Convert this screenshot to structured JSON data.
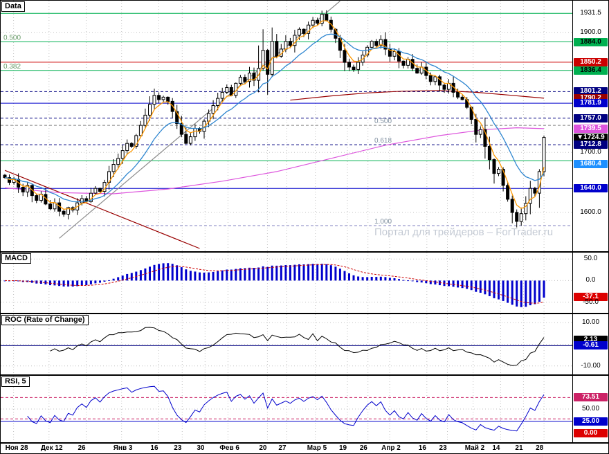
{
  "panels": {
    "main": {
      "label": "Data"
    },
    "macd": {
      "label": "MACD"
    },
    "roc": {
      "label": "ROC (Rate of Change)"
    },
    "rsi": {
      "label": "RSI, 5"
    }
  },
  "watermark": "Портал для трейдеров – ForTrader.ru",
  "chart_data": {
    "type": "candlestick",
    "x_ticks": [
      {
        "label": "Ноя 28",
        "f": 0.008
      },
      {
        "label": "Дек 12",
        "f": 0.07
      },
      {
        "label": "26",
        "f": 0.135
      },
      {
        "label": "Янв 3",
        "f": 0.197
      },
      {
        "label": "16",
        "f": 0.262
      },
      {
        "label": "23",
        "f": 0.303
      },
      {
        "label": "30",
        "f": 0.343
      },
      {
        "label": "Фев 6",
        "f": 0.383
      },
      {
        "label": "20",
        "f": 0.452
      },
      {
        "label": "27",
        "f": 0.486
      },
      {
        "label": "Мар 5",
        "f": 0.536
      },
      {
        "label": "19",
        "f": 0.592
      },
      {
        "label": "26",
        "f": 0.628
      },
      {
        "label": "Апр 2",
        "f": 0.666
      },
      {
        "label": "16",
        "f": 0.731
      },
      {
        "label": "23",
        "f": 0.767
      },
      {
        "label": "Май 2",
        "f": 0.812
      },
      {
        "label": "14",
        "f": 0.86
      },
      {
        "label": "21",
        "f": 0.9
      },
      {
        "label": "28",
        "f": 0.936
      }
    ],
    "price": {
      "ylim": [
        1540,
        1948
      ],
      "grid_levels": [
        1900,
        1700,
        1600
      ],
      "current_price": 1724.9,
      "candles": {
        "first_open": 1662,
        "closes": [
          1658,
          1650,
          1655,
          1642,
          1634,
          1645,
          1628,
          1620,
          1630,
          1614,
          1606,
          1616,
          1602,
          1597,
          1608,
          1604,
          1616,
          1623,
          1618,
          1632,
          1640,
          1635,
          1650,
          1668,
          1680,
          1690,
          1703,
          1715,
          1710,
          1728,
          1745,
          1762,
          1780,
          1795,
          1788,
          1792,
          1785,
          1768,
          1748,
          1730,
          1715,
          1726,
          1740,
          1735,
          1752,
          1765,
          1778,
          1790,
          1800,
          1808,
          1795,
          1815,
          1825,
          1818,
          1832,
          1820,
          1840,
          1870,
          1830,
          1885,
          1860,
          1872,
          1885,
          1878,
          1895,
          1905,
          1898,
          1912,
          1920,
          1915,
          1930,
          1920,
          1905,
          1890,
          1870,
          1850,
          1842,
          1838,
          1850,
          1862,
          1875,
          1885,
          1878,
          1888,
          1872,
          1860,
          1868,
          1852,
          1845,
          1855,
          1840,
          1832,
          1842,
          1828,
          1818,
          1826,
          1812,
          1805,
          1815,
          1800,
          1792,
          1788,
          1775,
          1755,
          1730,
          1738,
          1710,
          1688,
          1665,
          1672,
          1645,
          1622,
          1600,
          1585,
          1598,
          1615,
          1640,
          1632,
          1668,
          1724.9
        ],
        "wick_overrides": {
          "56": [
            1878,
            1800
          ],
          "57": [
            1905,
            1836
          ],
          "58": [
            1872,
            1796
          ],
          "59": [
            1908,
            1826
          ],
          "70": [
            1936,
            1910
          ],
          "108": [
            1690,
            1648
          ],
          "112": [
            1628,
            1582
          ],
          "113": [
            1605,
            1575
          ],
          "119": [
            1728,
            1660
          ]
        }
      },
      "moving_averages": [
        {
          "name": "ma-fast-orange",
          "period": 4,
          "color": "#FF9900"
        },
        {
          "name": "ma-slow-blue",
          "period": 13,
          "color": "#2E86D0"
        }
      ],
      "overlay_lines": [
        {
          "name": "trendline-down-maroon",
          "color": "#990000",
          "points": [
            [
              0,
              1670
            ],
            [
              43,
              1540
            ]
          ]
        },
        {
          "name": "trendline-up-gray",
          "color": "#8C8C8C",
          "points": [
            [
              12,
              1557
            ],
            [
              74,
              1952
            ]
          ]
        },
        {
          "name": "ma-long-maroon",
          "color": "#990000",
          "points": [
            [
              63,
              1787
            ],
            [
              72,
              1794
            ],
            [
              80,
              1799
            ],
            [
              88,
              1802
            ],
            [
              96,
              1803
            ],
            [
              104,
              1800
            ],
            [
              112,
              1795
            ],
            [
              119,
              1790.2
            ]
          ]
        },
        {
          "name": "ma-very-slow-magenta",
          "color": "#DD55DD",
          "points": [
            [
              0,
              1641
            ],
            [
              12,
              1633
            ],
            [
              24,
              1631
            ],
            [
              36,
              1639
            ],
            [
              48,
              1652
            ],
            [
              60,
              1668
            ],
            [
              72,
              1690
            ],
            [
              84,
              1712
            ],
            [
              96,
              1728
            ],
            [
              106,
              1738
            ],
            [
              113,
              1741
            ],
            [
              119,
              1739.5
            ]
          ]
        }
      ],
      "hlines": [
        {
          "value": 1931.5,
          "color": "#00B050",
          "dash": false,
          "fib": "0.618",
          "fibx": "left"
        },
        {
          "value": 1884.0,
          "color": "#00B050",
          "dash": false,
          "fib": "0.500",
          "fibx": "left"
        },
        {
          "value": 1850.2,
          "color": "#CC0000",
          "dash": false
        },
        {
          "value": 1836.4,
          "color": "#00B050",
          "dash": false,
          "fib": "0.382",
          "fibx": "left"
        },
        {
          "value": 1801.2,
          "color": "#000080",
          "dash": true
        },
        {
          "value": 1781.9,
          "color": "#0000CC",
          "dash": false
        },
        {
          "value": 1757.0,
          "color": "#000080",
          "dash": true
        },
        {
          "value": 1745.0,
          "color": "#808080",
          "dash": true,
          "fib": "0.500",
          "fibx": "mid"
        },
        {
          "value": 1712.8,
          "color": "#000080",
          "dash": true,
          "fib": "0.618",
          "fibx": "mid"
        },
        {
          "value": 1686.0,
          "color": "#00B050",
          "dash": false
        },
        {
          "value": 1640.0,
          "color": "#0000CC",
          "dash": false
        },
        {
          "value": 1578.0,
          "color": "#8080C0",
          "dash": true,
          "fib": "1.000",
          "fibx": "mid"
        }
      ],
      "axis_labels": [
        {
          "text": "1931.5",
          "value": 1931.5
        },
        {
          "text": "1900.0",
          "value": 1900
        },
        {
          "text": "1884.0",
          "value": 1884,
          "bg": "#00B050",
          "fg": "#000000"
        },
        {
          "text": "1850.2",
          "value": 1850.2,
          "bg": "#CC0000",
          "fg": "#FFFFFF"
        },
        {
          "text": "1836.4",
          "value": 1836.4,
          "bg": "#00B050",
          "fg": "#000000"
        },
        {
          "text": "1801.2",
          "value": 1801.2,
          "bg": "#000080",
          "fg": "#FFFFFF"
        },
        {
          "text": "1790.2",
          "value": 1790.2,
          "bg": "#990000",
          "fg": "#FFFFFF"
        },
        {
          "text": "1781.9",
          "value": 1781.9,
          "bg": "#0000CC",
          "fg": "#FFFFFF"
        },
        {
          "text": "1757.0",
          "value": 1757,
          "bg": "#000080",
          "fg": "#FFFFFF"
        },
        {
          "text": "1739.5",
          "value": 1739.5,
          "bg": "#DD55DD",
          "fg": "#FFFFFF"
        },
        {
          "text": "1724.9",
          "value": 1724.9,
          "bg": "#000000",
          "fg": "#FFFFFF",
          "marker": "▼"
        },
        {
          "text": "1712.8",
          "value": 1712.8,
          "bg": "#000080",
          "fg": "#FFFFFF"
        },
        {
          "text": "1700.0",
          "value": 1700
        },
        {
          "text": "1680.4",
          "value": 1680.4,
          "bg": "#1E90FF",
          "fg": "#FFFFFF"
        },
        {
          "text": "1640.0",
          "value": 1640,
          "bg": "#0000CC",
          "fg": "#FFFFFF"
        },
        {
          "text": "1600.0",
          "value": 1600
        }
      ]
    },
    "macd": {
      "ylim": [
        -70,
        60
      ],
      "grid_levels": [
        50,
        0,
        -50
      ],
      "fast_period": 12,
      "slow_period": 26,
      "signal_period": 9,
      "histogram_color": "#0000CC",
      "signal_color": "#CC0000",
      "axis_labels": [
        {
          "text": "50.0",
          "value": 50
        },
        {
          "text": "0.0",
          "value": 0
        },
        {
          "text": "-37.1",
          "value": -37.1,
          "bg": "#DD0000",
          "fg": "#FFFFFF"
        },
        {
          "text": "-50.0",
          "value": -50
        }
      ]
    },
    "roc": {
      "ylim": [
        -13,
        13
      ],
      "period": 10,
      "line_color": "#000000",
      "grid_levels": [
        10,
        0,
        -10
      ],
      "hlines": [
        {
          "value": -0.61,
          "color": "#000080",
          "dash": false
        }
      ],
      "axis_labels": [
        {
          "text": "10.00",
          "value": 10
        },
        {
          "text": "2.13",
          "value": 2.13,
          "bg": "#000000",
          "fg": "#FFFFFF"
        },
        {
          "text": "-0.61",
          "value": -0.61,
          "bg": "#0000CC",
          "fg": "#FFFFFF"
        },
        {
          "text": "-10.00",
          "value": -10
        }
      ]
    },
    "rsi": {
      "ylim": [
        -15,
        115
      ],
      "period": 5,
      "line_color": "#0000CC",
      "grid_levels": [
        50
      ],
      "hlines": [
        {
          "value": 73.51,
          "color": "#CC2266",
          "dash": true
        },
        {
          "value": 30,
          "color": "#CC2266",
          "dash": true
        },
        {
          "value": 25,
          "color": "#0000CC",
          "dash": false
        }
      ],
      "axis_labels": [
        {
          "text": "73.51",
          "value": 73.51,
          "bg": "#CC2266",
          "fg": "#FFFFFF"
        },
        {
          "text": "50.00",
          "value": 50
        },
        {
          "text": "25.00",
          "value": 25,
          "bg": "#0000CC",
          "fg": "#FFFFFF"
        },
        {
          "text": "0.00",
          "value": 0,
          "bg": "#DD0000",
          "fg": "#FFFFFF"
        }
      ]
    }
  }
}
